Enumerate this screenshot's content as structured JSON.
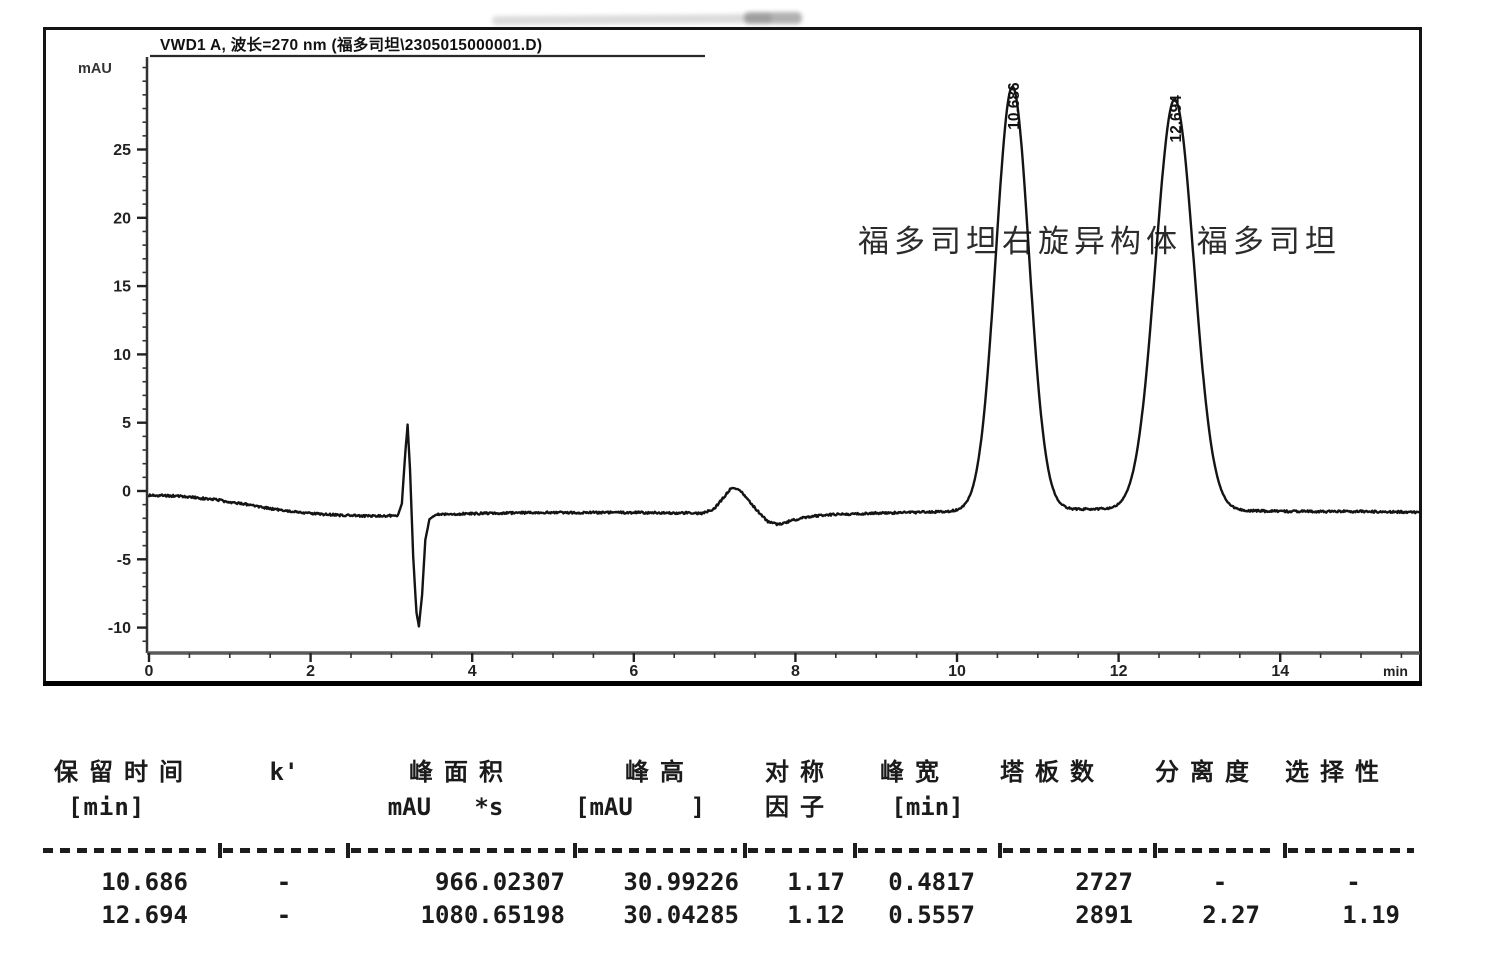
{
  "chart_data": {
    "type": "line",
    "title": "VWD1 A, 波长=270 nm (福多司坦\\2305015000001.D)",
    "ylabel": "mAU",
    "xlabel": "min",
    "x_ticks": [
      0,
      2,
      4,
      6,
      8,
      10,
      12,
      14
    ],
    "x_minor_step": 0.5,
    "y_ticks": [
      -10,
      -5,
      0,
      5,
      10,
      15,
      20,
      25
    ],
    "y_minor_step": 1,
    "xlim": [
      0,
      15.73
    ],
    "ylim": [
      -11.9,
      31.8
    ],
    "grid": false,
    "legend": "none",
    "annotation": "福多司坦右旋异构体 福多司坦",
    "peaks": [
      {
        "label": "10.686",
        "rt_min": 10.686,
        "height_mAU": 30.99226,
        "fwhm_min": 0.4817
      },
      {
        "label": "12.694",
        "rt_min": 12.694,
        "height_mAU": 30.04285,
        "fwhm_min": 0.5557
      }
    ],
    "baseline_trace_min_mAU": [
      [
        0,
        -0.3
      ],
      [
        0.4,
        -0.38
      ],
      [
        0.8,
        -0.62
      ],
      [
        1.2,
        -0.98
      ],
      [
        1.6,
        -1.38
      ],
      [
        2.0,
        -1.65
      ],
      [
        2.4,
        -1.78
      ],
      [
        2.8,
        -1.84
      ],
      [
        3.08,
        -1.8
      ],
      [
        3.13,
        -0.9
      ],
      [
        3.17,
        2.6
      ],
      [
        3.2,
        4.85
      ],
      [
        3.23,
        1.6
      ],
      [
        3.27,
        -4.8
      ],
      [
        3.31,
        -8.9
      ],
      [
        3.34,
        -9.9
      ],
      [
        3.38,
        -7.6
      ],
      [
        3.42,
        -3.6
      ],
      [
        3.47,
        -2.05
      ],
      [
        3.56,
        -1.72
      ],
      [
        4.2,
        -1.63
      ],
      [
        5.0,
        -1.58
      ],
      [
        6.0,
        -1.58
      ],
      [
        6.85,
        -1.62
      ],
      [
        7.0,
        -1.28
      ],
      [
        7.12,
        -0.4
      ],
      [
        7.22,
        0.3
      ],
      [
        7.32,
        0.05
      ],
      [
        7.5,
        -1.25
      ],
      [
        7.65,
        -2.2
      ],
      [
        7.78,
        -2.45
      ],
      [
        7.95,
        -2.18
      ],
      [
        8.15,
        -1.88
      ],
      [
        8.4,
        -1.74
      ],
      [
        9.0,
        -1.62
      ],
      [
        9.6,
        -1.55
      ],
      [
        10.1,
        -1.46
      ],
      [
        10.69,
        -1.4
      ],
      [
        11.3,
        -1.34
      ],
      [
        11.9,
        -1.32
      ],
      [
        12.69,
        -1.38
      ],
      [
        13.4,
        -1.44
      ],
      [
        14.2,
        -1.5
      ],
      [
        15.0,
        -1.5
      ],
      [
        15.73,
        -1.55
      ]
    ]
  },
  "table": {
    "headers": [
      {
        "line1": "保留时间",
        "line2": "[min]"
      },
      {
        "line1": "k'",
        "line2": ""
      },
      {
        "line1": "峰面积",
        "line2": "mAU   *s"
      },
      {
        "line1": "峰高",
        "line2": "[mAU    ]"
      },
      {
        "line1": "对称",
        "line2": "因子"
      },
      {
        "line1": "峰宽",
        "line2": "[min]"
      },
      {
        "line1": "塔板数",
        "line2": ""
      },
      {
        "line1": "分离度",
        "line2": ""
      },
      {
        "line1": "选择性",
        "line2": ""
      }
    ],
    "separator": "--------|------|-----------|-----------|------|-------|--------|-----|------",
    "rows": [
      [
        "10.686",
        "-",
        "966.02307",
        "30.99226",
        "1.17",
        "0.4817",
        "2727",
        "-",
        "-"
      ],
      [
        "12.694",
        "-",
        "1080.65198",
        "30.04285",
        "1.12",
        "0.5557",
        "2891",
        "2.27",
        "1.19"
      ]
    ]
  }
}
